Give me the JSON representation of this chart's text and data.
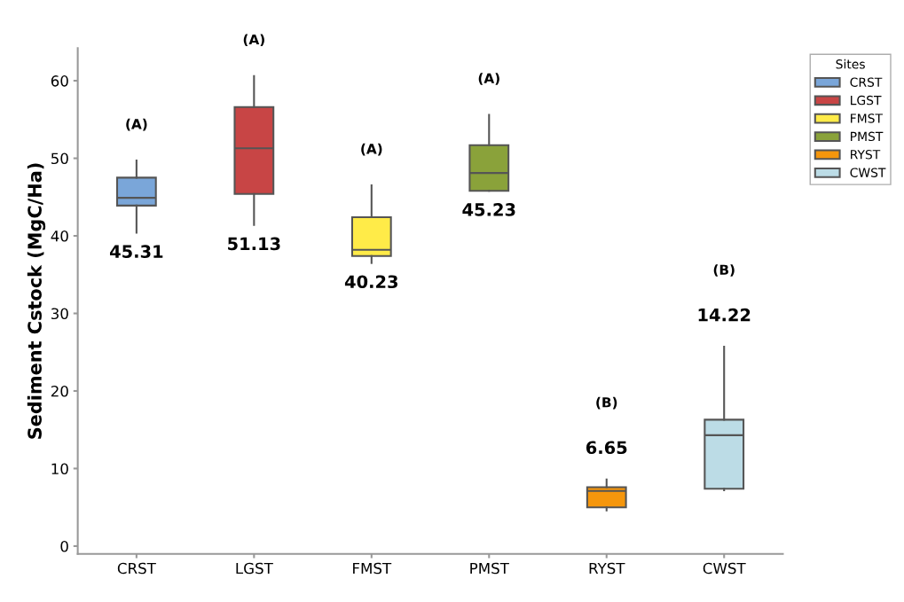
{
  "chart_data": {
    "type": "box",
    "ylabel": "Sediment Cstock (MgC/Ha)",
    "legend_title": "Sites",
    "legend": "top right",
    "categories": [
      "CRST",
      "LGST",
      "FMST",
      "PMST",
      "RYST",
      "CWST"
    ],
    "series": [
      {
        "name": "CRST",
        "color": "#7aa6d9",
        "boxes": [
          {
            "low": 40.4,
            "q1": 43.9,
            "median": 44.9,
            "q3": 47.5,
            "high": 49.7
          },
          null,
          null,
          null,
          null,
          null
        ]
      },
      {
        "name": "LGST",
        "color": "#c84545",
        "boxes": [
          null,
          {
            "low": 41.4,
            "q1": 45.4,
            "median": 51.3,
            "q3": 56.6,
            "high": 60.6
          },
          null,
          null,
          null,
          null
        ]
      },
      {
        "name": "FMST",
        "color": "#ffeb48",
        "boxes": [
          null,
          null,
          {
            "low": 36.5,
            "q1": 37.4,
            "median": 38.2,
            "q3": 42.4,
            "high": 46.5
          },
          null,
          null,
          null
        ]
      },
      {
        "name": "PMST",
        "color": "#8aa23a",
        "boxes": [
          null,
          null,
          null,
          {
            "low": 45.8,
            "q1": 45.8,
            "median": 48.1,
            "q3": 51.7,
            "high": 55.6
          },
          null,
          null
        ]
      },
      {
        "name": "RYST",
        "color": "#f5960c",
        "boxes": [
          null,
          null,
          null,
          null,
          {
            "low": 4.6,
            "q1": 5.0,
            "median": 7.1,
            "q3": 7.6,
            "high": 8.6
          },
          null
        ]
      },
      {
        "name": "CWST",
        "color": "#bcdce6",
        "boxes": [
          null,
          null,
          null,
          null,
          null,
          {
            "low": 7.2,
            "q1": 7.4,
            "median": 14.3,
            "q3": 16.3,
            "high": 25.7
          }
        ]
      }
    ],
    "ylim": [
      -1,
      64.2
    ],
    "yticks": [
      0,
      10,
      20,
      30,
      40,
      50,
      60
    ],
    "grid": false,
    "annotations": [
      "(A)",
      "45.31",
      "(A)",
      "51.13",
      "(A)",
      "40.23",
      "(A)",
      "45.23",
      "(B)",
      "6.65",
      "(B)",
      "14.22"
    ]
  }
}
